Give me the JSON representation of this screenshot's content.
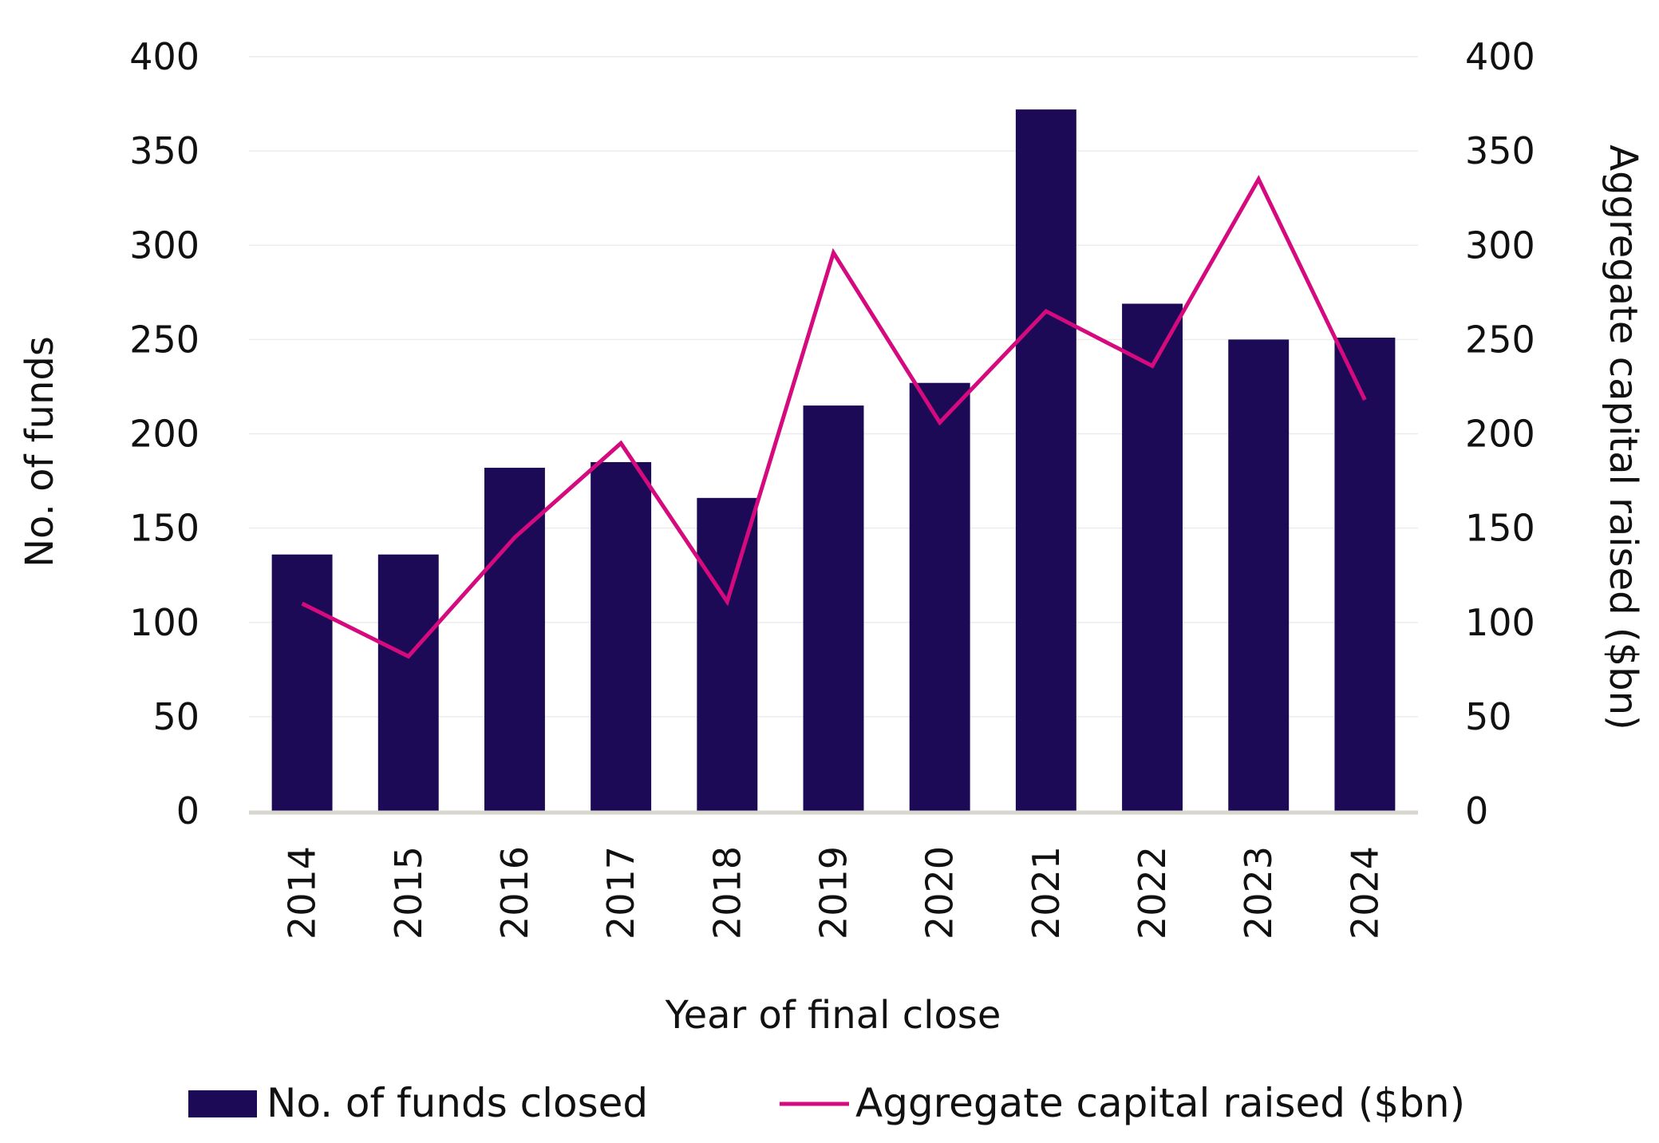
{
  "chart_data": {
    "type": "bar",
    "title": "",
    "xlabel": "Year of final close",
    "ylabel": "No. of funds",
    "y2label": "Aggregate capital raised ($bn)",
    "categories": [
      "2014",
      "2015",
      "2016",
      "2017",
      "2018",
      "2019",
      "2020",
      "2021",
      "2022",
      "2023",
      "2024"
    ],
    "ylim": [
      0,
      400
    ],
    "y2lim": [
      0,
      400
    ],
    "yticks": [
      "0",
      "50",
      "100",
      "150",
      "200",
      "250",
      "300",
      "350",
      "400"
    ],
    "y2ticks": [
      "0",
      "50",
      "100",
      "150",
      "200",
      "250",
      "300",
      "350",
      "400"
    ],
    "grid": true,
    "legend_position": "bottom",
    "series": [
      {
        "name": "No. of funds closed",
        "type": "bar",
        "axis": "left",
        "color": "#1c0a56",
        "values": [
          136,
          136,
          182,
          185,
          166,
          215,
          227,
          372,
          269,
          250,
          251
        ]
      },
      {
        "name": "Aggregate capital raised ($bn)",
        "type": "line",
        "axis": "right",
        "color": "#d40a7e",
        "values": [
          110,
          82,
          145,
          195,
          111,
          296,
          206,
          265,
          236,
          335,
          218
        ]
      }
    ]
  }
}
